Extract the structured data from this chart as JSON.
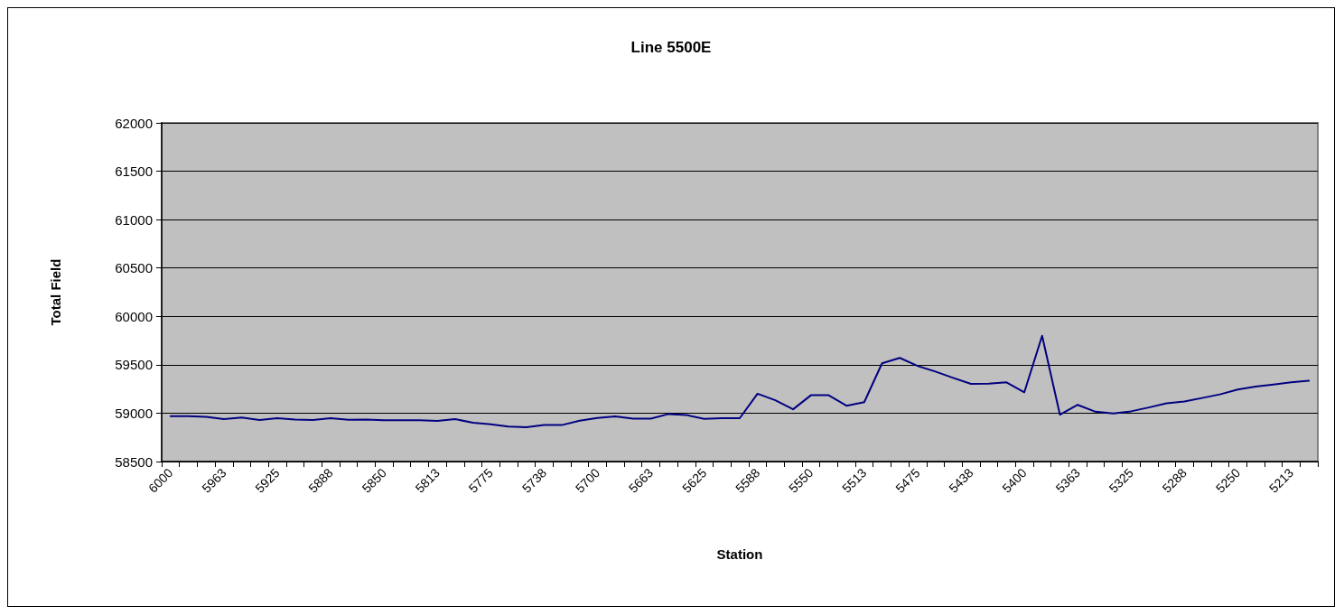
{
  "chart_data": {
    "type": "line",
    "title": "Line 5500E",
    "xlabel": "Station",
    "ylabel": "Total Field",
    "categories": [
      "6000",
      null,
      null,
      "5963",
      null,
      null,
      "5925",
      null,
      null,
      "5888",
      null,
      null,
      "5850",
      null,
      null,
      "5813",
      null,
      null,
      "5775",
      null,
      null,
      "5738",
      null,
      null,
      "5700",
      null,
      null,
      "5663",
      null,
      null,
      "5625",
      null,
      null,
      "5588",
      null,
      null,
      "5550",
      null,
      null,
      "5513",
      null,
      null,
      "5475",
      null,
      null,
      "5438",
      null,
      null,
      "5400",
      null,
      null,
      "5363",
      null,
      null,
      "5325",
      null,
      null,
      "5288",
      null,
      null,
      "5250",
      null,
      null,
      "5213",
      null
    ],
    "series": [
      {
        "color": "#000080",
        "values": [
          58970,
          58968,
          58963,
          58938,
          58954,
          58929,
          58948,
          58935,
          58929,
          58948,
          58932,
          58935,
          58926,
          58926,
          58926,
          58920,
          58938,
          58901,
          58886,
          58861,
          58855,
          58877,
          58877,
          58923,
          58951,
          58966,
          58944,
          58944,
          58991,
          58981,
          58941,
          58948,
          58948,
          59201,
          59133,
          59040,
          59185,
          59185,
          59077,
          59114,
          59515,
          59571,
          59488,
          59430,
          59364,
          59302,
          59305,
          59318,
          59216,
          59799,
          58985,
          59086,
          59015,
          58997,
          59019,
          59059,
          59102,
          59120,
          59157,
          59194,
          59244,
          59275,
          59296,
          59318,
          59336
        ]
      }
    ],
    "ylim": [
      58500,
      62000
    ],
    "yticks": [
      58500,
      59000,
      59500,
      60000,
      60500,
      61000,
      61500,
      62000
    ],
    "grid": "y",
    "marker": "none",
    "line_style": "solid"
  }
}
